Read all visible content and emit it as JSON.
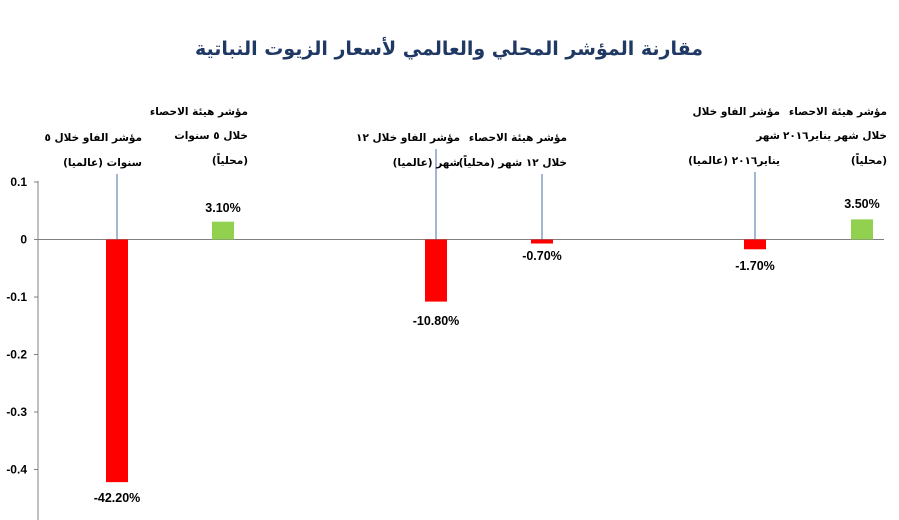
{
  "chart_data": {
    "type": "bar",
    "title": "مقارنة المؤشر المحلي والعالمي لأسعار الزيوت النباتية",
    "ylim": [
      -0.5,
      0.12
    ],
    "yticks": [
      {
        "value": 0.1,
        "label": "0.1"
      },
      {
        "value": 0,
        "label": "0"
      },
      {
        "value": -0.1,
        "label": "-0.1"
      },
      {
        "value": -0.2,
        "label": "-0.2"
      },
      {
        "value": -0.3,
        "label": "-0.3"
      },
      {
        "value": -0.4,
        "label": "-0.4"
      }
    ],
    "grid": false,
    "legend": "none",
    "colors": {
      "negative": "#ff0000",
      "positive": "#92d050",
      "title": "#1f3864"
    },
    "bars": [
      {
        "value": -0.422,
        "label": "-42.20%",
        "annotation": [
          "مؤشر الفاو خلال ٥",
          "سنوات (عالميا)"
        ]
      },
      {
        "value": 0.031,
        "label": "3.10%",
        "annotation": [
          "مؤشر هيئة الاحصاء",
          "خلال ٥ سنوات",
          "(محلياً)"
        ]
      },
      {
        "value": -0.108,
        "label": "-10.80%",
        "annotation": [
          "مؤشر الفاو خلال ١٢",
          "شهر (عالميا)"
        ]
      },
      {
        "value": -0.007,
        "label": "-0.70%",
        "annotation": [
          "مؤشر هيئة الاحصاء",
          "خلال ١٢ شهر (محلياً)"
        ]
      },
      {
        "value": -0.017,
        "label": "-1.70%",
        "annotation": [
          "مؤشر الفاو خلال",
          "شهر",
          "يناير٢٠١٦ (عالميا)"
        ]
      },
      {
        "value": 0.035,
        "label": "3.50%",
        "annotation": [
          "مؤشر هيئة الاحصاء",
          "خلال شهر يناير٢٠١٦",
          "(محلياً)"
        ]
      }
    ]
  }
}
